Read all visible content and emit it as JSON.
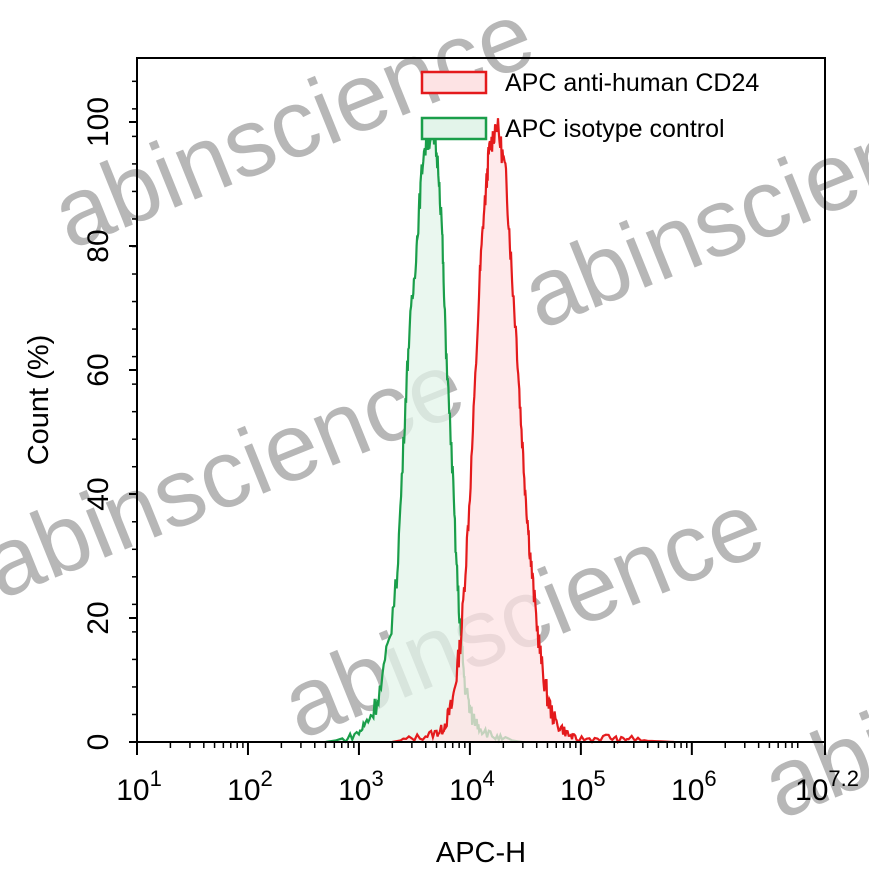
{
  "chart_data": {
    "type": "area",
    "title": "",
    "xlabel": "APC-H",
    "ylabel": "Count  (%)",
    "xscale": "log",
    "xlim_log10": [
      1,
      7.2
    ],
    "ylim": [
      0,
      110
    ],
    "x_tick_labels": [
      {
        "base": "10",
        "exp": "1",
        "log10": 1
      },
      {
        "base": "10",
        "exp": "2",
        "log10": 2
      },
      {
        "base": "10",
        "exp": "3",
        "log10": 3
      },
      {
        "base": "10",
        "exp": "4",
        "log10": 4
      },
      {
        "base": "10",
        "exp": "5",
        "log10": 5
      },
      {
        "base": "10",
        "exp": "6",
        "log10": 6
      },
      {
        "base": "10",
        "exp": "7.2",
        "log10": 7.2
      }
    ],
    "y_ticks": [
      "0",
      "20",
      "40",
      "60",
      "80",
      "100"
    ],
    "grid": false,
    "legend": "top-right",
    "series": [
      {
        "name": "APC anti-human CD24",
        "color": "#e41a1c",
        "fill": "#fde3e4",
        "points_log10x_y": [
          [
            3.3,
            0
          ],
          [
            3.45,
            0.5
          ],
          [
            3.6,
            1
          ],
          [
            3.7,
            1.5
          ],
          [
            3.75,
            2
          ],
          [
            3.8,
            4
          ],
          [
            3.84,
            6
          ],
          [
            3.88,
            11
          ],
          [
            3.92,
            17
          ],
          [
            3.96,
            28
          ],
          [
            4.0,
            40
          ],
          [
            4.04,
            55
          ],
          [
            4.09,
            75
          ],
          [
            4.12,
            84
          ],
          [
            4.15,
            90
          ],
          [
            4.17,
            95
          ],
          [
            4.2,
            97
          ],
          [
            4.24,
            100
          ],
          [
            4.28,
            96
          ],
          [
            4.32,
            92
          ],
          [
            4.35,
            84
          ],
          [
            4.38,
            75
          ],
          [
            4.42,
            65
          ],
          [
            4.45,
            55
          ],
          [
            4.48,
            46
          ],
          [
            4.51,
            38
          ],
          [
            4.54,
            31
          ],
          [
            4.57,
            25
          ],
          [
            4.61,
            18
          ],
          [
            4.65,
            12
          ],
          [
            4.69,
            8
          ],
          [
            4.73,
            5
          ],
          [
            4.78,
            3
          ],
          [
            4.84,
            2
          ],
          [
            4.9,
            1
          ],
          [
            4.96,
            0.5
          ],
          [
            5.1,
            0.5
          ],
          [
            5.25,
            0.8
          ],
          [
            5.35,
            0.3
          ],
          [
            5.43,
            0.6
          ],
          [
            5.6,
            0.2
          ],
          [
            5.84,
            0
          ]
        ]
      },
      {
        "name": "APC isotype control",
        "color": "#1a9e4a",
        "fill": "#e3f4ea",
        "points_log10x_y": [
          [
            2.7,
            0
          ],
          [
            2.88,
            0.5
          ],
          [
            3.0,
            1.5
          ],
          [
            3.06,
            3
          ],
          [
            3.13,
            5
          ],
          [
            3.2,
            9
          ],
          [
            3.27,
            16
          ],
          [
            3.34,
            26
          ],
          [
            3.38,
            40
          ],
          [
            3.42,
            55
          ],
          [
            3.45,
            65
          ],
          [
            3.49,
            73
          ],
          [
            3.52,
            80
          ],
          [
            3.55,
            88
          ],
          [
            3.58,
            95
          ],
          [
            3.62,
            97
          ],
          [
            3.65,
            98
          ],
          [
            3.69,
            96
          ],
          [
            3.72,
            92
          ],
          [
            3.75,
            82
          ],
          [
            3.77,
            70
          ],
          [
            3.8,
            58
          ],
          [
            3.84,
            45
          ],
          [
            3.87,
            32
          ],
          [
            3.9,
            22
          ],
          [
            3.93,
            15
          ],
          [
            3.95,
            10
          ],
          [
            3.99,
            6
          ],
          [
            4.02,
            4
          ],
          [
            4.07,
            3
          ],
          [
            4.11,
            2
          ],
          [
            4.2,
            1
          ],
          [
            4.29,
            0.5
          ],
          [
            4.47,
            0
          ]
        ]
      }
    ]
  },
  "watermark": "abinscience"
}
